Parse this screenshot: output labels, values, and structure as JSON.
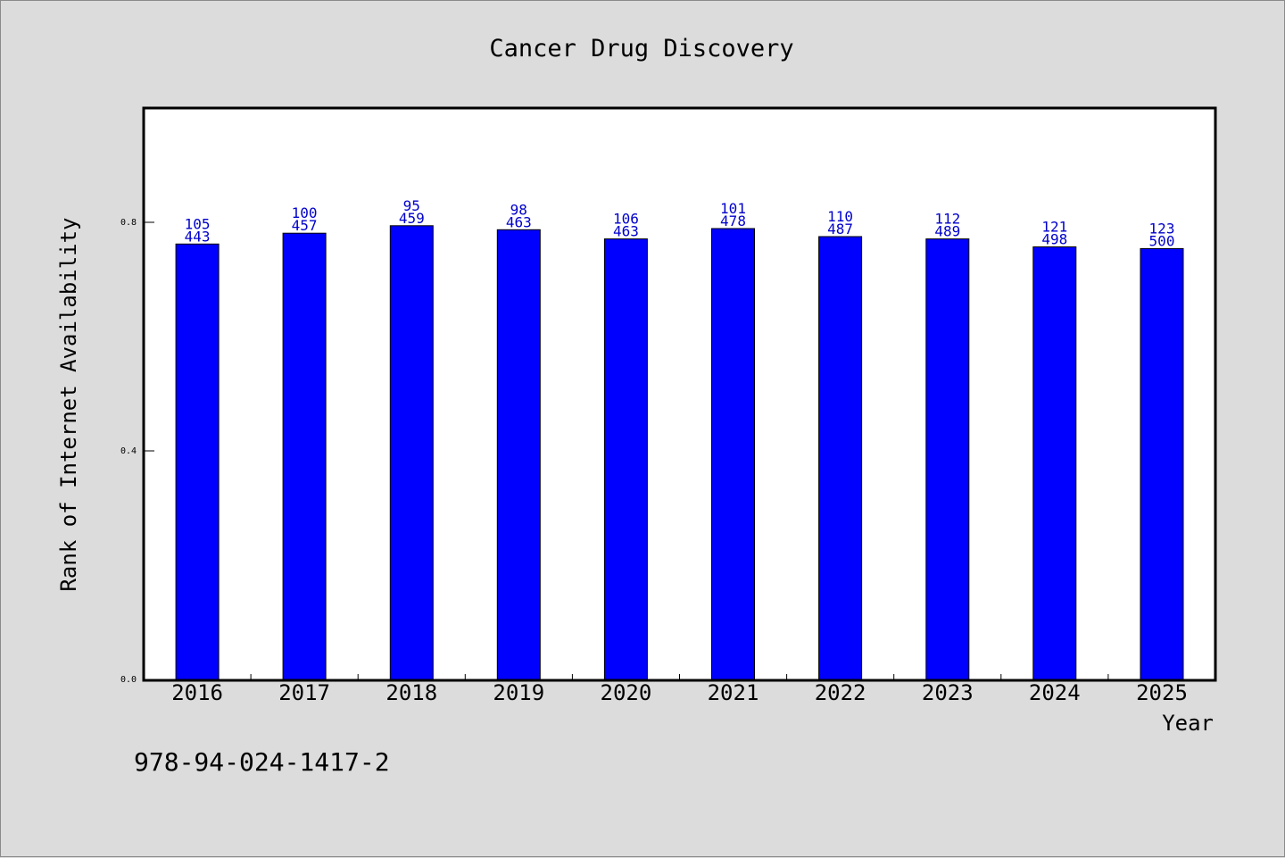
{
  "chart_data": {
    "type": "bar",
    "title": "Cancer Drug Discovery",
    "xlabel": "Year",
    "ylabel": "Rank of Internet Availability",
    "categories": [
      "2016",
      "2017",
      "2018",
      "2019",
      "2020",
      "2021",
      "2022",
      "2023",
      "2024",
      "2025"
    ],
    "series": [
      {
        "values": [
          0.762,
          0.781,
          0.794,
          0.787,
          0.771,
          0.789,
          0.775,
          0.771,
          0.757,
          0.754
        ],
        "color": "#0000ff",
        "labels_top": [
          "105",
          "100",
          "95",
          "98",
          "106",
          "101",
          "110",
          "112",
          "121",
          "123"
        ],
        "labels_bottom": [
          "443",
          "457",
          "459",
          "463",
          "463",
          "478",
          "487",
          "489",
          "498",
          "500"
        ]
      }
    ],
    "yticks": [
      "0.0",
      "0.4",
      "0.8"
    ],
    "ylim": [
      0,
      1.0
    ],
    "grid": false,
    "legend": "none"
  },
  "footer": {
    "isbn": "978-94-024-1417-2"
  }
}
